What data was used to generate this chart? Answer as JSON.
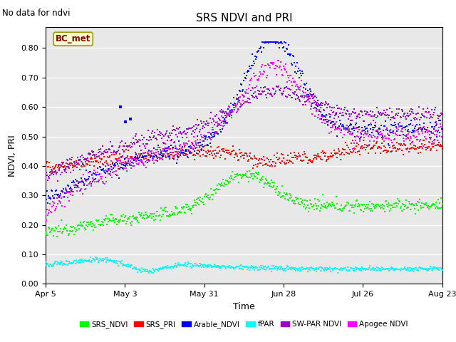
{
  "title": "SRS NDVI and PRI",
  "no_data_text": "No data for ndvi",
  "ylabel": "NDVI, PRI",
  "xlabel": "Time",
  "annotation": "BC_met",
  "plot_bg_color": "#e8e8e8",
  "ylim": [
    0.0,
    0.87
  ],
  "yticks": [
    0.0,
    0.1,
    0.2,
    0.3,
    0.4,
    0.5,
    0.6,
    0.7,
    0.8
  ],
  "xtick_labels": [
    "Apr 5",
    "May 3",
    "May 31",
    "Jun 28",
    "Jul 26",
    "Aug 23"
  ],
  "xtick_positions": [
    0,
    28,
    56,
    84,
    112,
    140
  ],
  "n_days": 140,
  "series": {
    "SRS_NDVI": {
      "color": "#00ff00"
    },
    "SRS_PRI": {
      "color": "#ff0000"
    },
    "Arable_NDVI": {
      "color": "#0000ff"
    },
    "fPAR": {
      "color": "#00ffff"
    },
    "SW_PAR_NDVI": {
      "color": "#9900cc"
    },
    "Apogee_NDVI": {
      "color": "#ff00ff"
    }
  },
  "legend_labels": [
    "SRS_NDVI",
    "SRS_PRI",
    "Arable_NDVI",
    "fPAR",
    "SW-PAR NDVI",
    "Apogee NDVI"
  ],
  "legend_colors": [
    "#00ff00",
    "#ff0000",
    "#0000ff",
    "#00ffff",
    "#9900cc",
    "#ff00ff"
  ]
}
